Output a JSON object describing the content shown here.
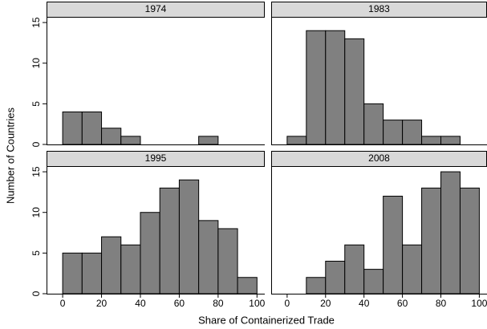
{
  "ylabel": "Number of Countries",
  "xlabel": "Share of Containerized Trade",
  "chart_data": [
    {
      "type": "histogram",
      "title": "1974",
      "bins": [
        0,
        10,
        20,
        30,
        40,
        50,
        60,
        70,
        80,
        90,
        100
      ],
      "values": [
        4,
        4,
        2,
        1,
        0,
        0,
        0,
        1,
        0,
        0
      ],
      "color": "#808080",
      "xlim": [
        -8.3,
        104
      ],
      "ylim": [
        0,
        15.6
      ],
      "yticks": [
        0,
        5,
        10,
        15
      ]
    },
    {
      "type": "histogram",
      "title": "1983",
      "bins": [
        0,
        10,
        20,
        30,
        40,
        50,
        60,
        70,
        80,
        90,
        100
      ],
      "values": [
        1,
        14,
        14,
        13,
        5,
        3,
        3,
        1,
        1,
        0
      ],
      "color": "#808080",
      "xlim": [
        -8.3,
        104
      ],
      "ylim": [
        0,
        15.6
      ]
    },
    {
      "type": "histogram",
      "title": "1995",
      "bins": [
        0,
        10,
        20,
        30,
        40,
        50,
        60,
        70,
        80,
        90,
        100
      ],
      "values": [
        5,
        5,
        7,
        6,
        10,
        13,
        14,
        9,
        8,
        2
      ],
      "color": "#808080",
      "xlim": [
        -8.3,
        104
      ],
      "ylim": [
        0,
        15.6
      ],
      "yticks": [
        0,
        5,
        10,
        15
      ],
      "xticks": [
        0,
        20,
        40,
        60,
        80,
        100
      ]
    },
    {
      "type": "histogram",
      "title": "2008",
      "bins": [
        0,
        10,
        20,
        30,
        40,
        50,
        60,
        70,
        80,
        90,
        100
      ],
      "values": [
        0,
        2,
        4,
        6,
        3,
        12,
        6,
        13,
        15,
        13
      ],
      "color": "#808080",
      "xlim": [
        -8.3,
        104
      ],
      "ylim": [
        0,
        15.6
      ],
      "xticks": [
        0,
        20,
        40,
        60,
        80,
        100
      ]
    }
  ]
}
